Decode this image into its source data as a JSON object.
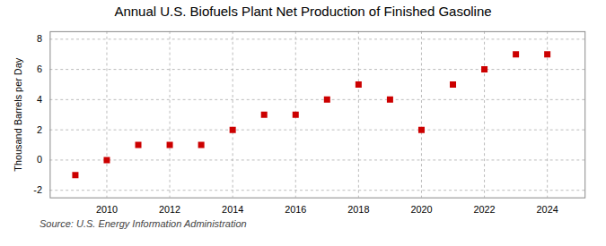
{
  "chart_data": {
    "type": "scatter",
    "title": "Annual U.S. Biofuels Plant Net Production of Finished Gasoline",
    "ylabel": "Thousand Barrels per Day",
    "source": "Source: U.S. Energy Information Administration",
    "x": [
      2009,
      2010,
      2011,
      2012,
      2013,
      2014,
      2015,
      2016,
      2017,
      2018,
      2019,
      2020,
      2021,
      2022,
      2023,
      2024
    ],
    "values": [
      -1,
      0,
      1,
      1,
      1,
      2,
      3,
      3,
      4,
      5,
      4,
      2,
      5,
      6,
      7,
      7
    ],
    "color": "#cc0000",
    "marker": "square",
    "xlim": [
      2008.2,
      2025.2
    ],
    "ylim": [
      -2.5,
      8.5
    ],
    "xticks": [
      2010,
      2012,
      2014,
      2016,
      2018,
      2020,
      2022,
      2024
    ],
    "yticks": [
      -2,
      0,
      2,
      4,
      6,
      8
    ],
    "grid": true
  }
}
